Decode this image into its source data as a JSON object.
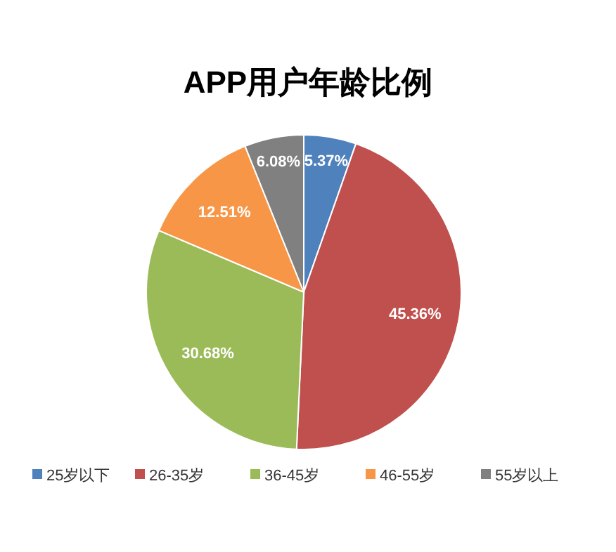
{
  "chart_data": {
    "type": "pie",
    "title": "APP用户年龄比例",
    "categories": [
      "25岁以下",
      "26-35岁",
      "36-45岁",
      "46-55岁",
      "55岁以上"
    ],
    "values": [
      5.37,
      45.36,
      30.68,
      12.51,
      6.08
    ],
    "colors": [
      "#4f81bd",
      "#c0504d",
      "#9bbb59",
      "#f79646",
      "#808080"
    ],
    "value_labels": [
      "5.37%",
      "45.36%",
      "30.68%",
      "12.51%",
      "6.08%"
    ],
    "legend": "bottom"
  }
}
